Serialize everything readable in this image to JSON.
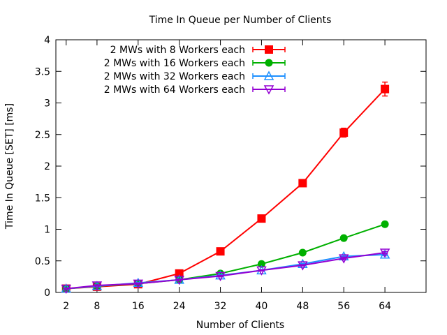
{
  "chart_data": {
    "type": "line",
    "title": "Time In Queue per Number of Clients",
    "xlabel": "Number of Clients",
    "ylabel": "Time In Queue [SET] [ms]",
    "categories": [
      "2",
      "8",
      "16",
      "24",
      "32",
      "40",
      "48",
      "56",
      "64"
    ],
    "ylim": [
      0,
      4
    ],
    "yticks": [
      "0",
      "0.5",
      "1",
      "1.5",
      "2",
      "2.5",
      "3",
      "3.5",
      "4"
    ],
    "grid": false,
    "legend_position": "top-left",
    "series": [
      {
        "name": "2 MWs with 8 Workers each",
        "color": "#ff0000",
        "marker": "square",
        "values": [
          0.06,
          0.09,
          0.13,
          0.3,
          0.65,
          1.17,
          1.73,
          2.53,
          3.22
        ],
        "errors": [
          0.01,
          0.01,
          0.01,
          0.02,
          0.02,
          0.03,
          0.04,
          0.07,
          0.11
        ]
      },
      {
        "name": "2 MWs with 16 Workers each",
        "color": "#00b000",
        "marker": "circle",
        "values": [
          0.06,
          0.1,
          0.14,
          0.2,
          0.3,
          0.45,
          0.63,
          0.86,
          1.08
        ],
        "errors": [
          0.01,
          0.01,
          0.01,
          0.01,
          0.01,
          0.01,
          0.02,
          0.02,
          0.02
        ]
      },
      {
        "name": "2 MWs with 32 Workers each",
        "color": "#1e90ff",
        "marker": "triangle-up",
        "values": [
          0.06,
          0.1,
          0.15,
          0.2,
          0.27,
          0.35,
          0.45,
          0.57,
          0.6
        ],
        "errors": [
          0.01,
          0.01,
          0.01,
          0.01,
          0.01,
          0.01,
          0.01,
          0.02,
          0.02
        ]
      },
      {
        "name": "2 MWs with 64 Workers each",
        "color": "#9400d3",
        "marker": "triangle-down",
        "values": [
          0.06,
          0.11,
          0.14,
          0.2,
          0.26,
          0.35,
          0.43,
          0.54,
          0.63
        ],
        "errors": [
          0.01,
          0.01,
          0.01,
          0.01,
          0.01,
          0.01,
          0.01,
          0.02,
          0.02
        ]
      }
    ]
  }
}
